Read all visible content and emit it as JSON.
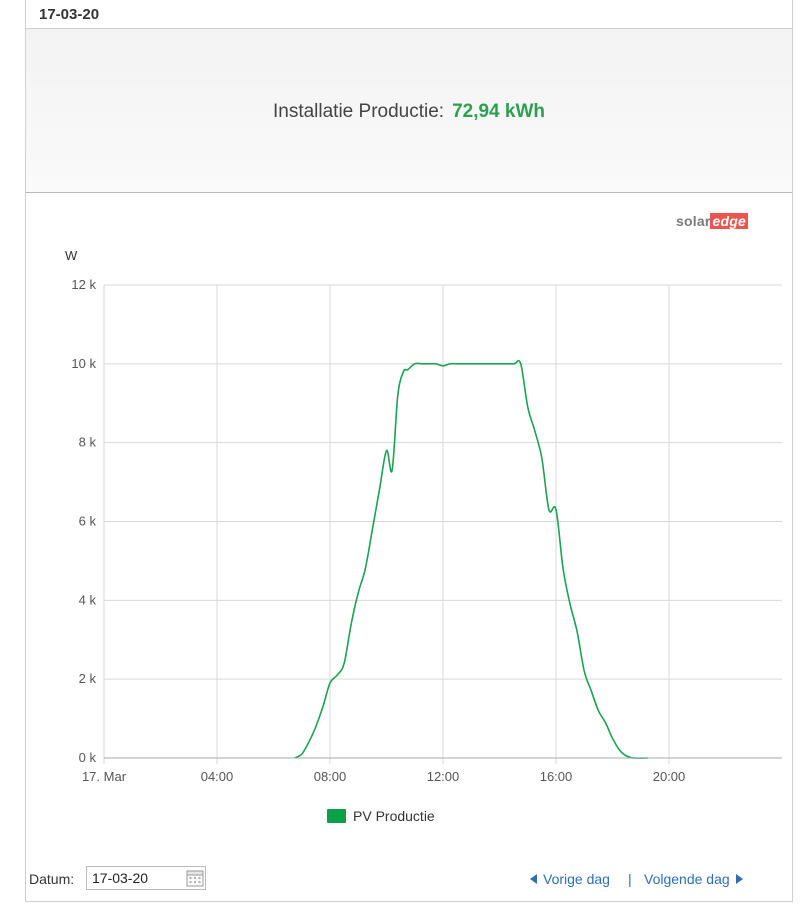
{
  "header": {
    "date_title": "17-03-20"
  },
  "summary": {
    "label": "Installatie Productie:",
    "value": "72,94 kWh",
    "value_color": "#2e9e4f"
  },
  "logo": {
    "solar": "solar",
    "edge": "edge"
  },
  "footer": {
    "date_label": "Datum:",
    "date_value": "17-03-20",
    "prev_label": "Vorige dag",
    "separator": "|",
    "next_label": "Volgende dag"
  },
  "colors": {
    "series": "#1aa352",
    "legend": "#0aa14a",
    "grid": "#d9d9d9",
    "link": "#2f6db5"
  },
  "chart_data": {
    "type": "line",
    "ylabel": "W",
    "ylim": [
      0,
      12000
    ],
    "yticks": [
      {
        "value": 0,
        "label": "0 k"
      },
      {
        "value": 2000,
        "label": "2 k"
      },
      {
        "value": 4000,
        "label": "4 k"
      },
      {
        "value": 6000,
        "label": "6 k"
      },
      {
        "value": 8000,
        "label": "8 k"
      },
      {
        "value": 10000,
        "label": "10 k"
      },
      {
        "value": 12000,
        "label": "12 k"
      }
    ],
    "xlim": [
      0,
      24
    ],
    "xticks": [
      {
        "value": 0,
        "label": "17. Mar"
      },
      {
        "value": 4,
        "label": "04:00"
      },
      {
        "value": 8,
        "label": "08:00"
      },
      {
        "value": 12,
        "label": "12:00"
      },
      {
        "value": 16,
        "label": "16:00"
      },
      {
        "value": 20,
        "label": "20:00"
      }
    ],
    "grid": true,
    "legend_position": "bottom-center",
    "series": [
      {
        "name": "PV Productie",
        "x": [
          6.75,
          7.0,
          7.25,
          7.5,
          7.75,
          8.0,
          8.25,
          8.5,
          8.75,
          9.0,
          9.25,
          9.5,
          9.75,
          10.0,
          10.2,
          10.4,
          10.6,
          10.75,
          11.0,
          11.25,
          11.5,
          11.75,
          12.0,
          12.25,
          12.5,
          13.0,
          13.5,
          14.0,
          14.5,
          14.75,
          15.0,
          15.25,
          15.5,
          15.75,
          16.0,
          16.25,
          16.5,
          16.75,
          17.0,
          17.25,
          17.5,
          17.75,
          18.0,
          18.25,
          18.5,
          18.75,
          19.25
        ],
        "values": [
          0,
          100,
          400,
          800,
          1300,
          1900,
          2100,
          2400,
          3400,
          4200,
          4800,
          5800,
          6800,
          7800,
          7300,
          9200,
          9800,
          9850,
          10000,
          10000,
          10000,
          10000,
          9950,
          10000,
          10000,
          10000,
          10000,
          10000,
          10000,
          10000,
          8900,
          8300,
          7600,
          6300,
          6300,
          4800,
          3900,
          3200,
          2200,
          1700,
          1200,
          900,
          500,
          200,
          50,
          0,
          0
        ]
      }
    ]
  }
}
